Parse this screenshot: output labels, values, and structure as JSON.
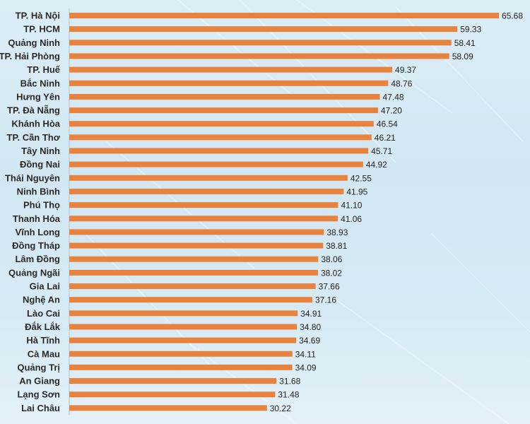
{
  "chart_data": {
    "type": "bar",
    "orientation": "horizontal",
    "categories": [
      "TP. Hà Nội",
      "TP. HCM",
      "Quảng Ninh",
      "TP. Hải Phòng",
      "TP. Huế",
      "Bắc Ninh",
      "Hưng Yên",
      "TP. Đà Nẵng",
      "Khánh Hòa",
      "TP. Cần Thơ",
      "Tây Ninh",
      "Đồng Nai",
      "Thái Nguyên",
      "Ninh Bình",
      "Phú Thọ",
      "Thanh Hóa",
      "Vĩnh Long",
      "Đồng Tháp",
      "Lâm Đồng",
      "Quảng Ngãi",
      "Gia Lai",
      "Nghệ An",
      "Lào Cai",
      "Đắk Lắk",
      "Hà Tĩnh",
      "Cà Mau",
      "Quảng Trị",
      "An Giang",
      "Lạng Sơn",
      "Lai Châu"
    ],
    "values": [
      65.68,
      59.33,
      58.41,
      58.09,
      49.37,
      48.76,
      47.48,
      47.2,
      46.54,
      46.21,
      45.71,
      44.92,
      42.55,
      41.95,
      41.1,
      41.06,
      38.93,
      38.81,
      38.06,
      38.02,
      37.66,
      37.16,
      34.91,
      34.8,
      34.69,
      34.11,
      34.09,
      31.68,
      31.48,
      30.22
    ],
    "value_labels": [
      "65.68",
      "59.33",
      "58.41",
      "58.09",
      "49.37",
      "48.76",
      "47.48",
      "47.20",
      "46.54",
      "46.21",
      "45.71",
      "44.92",
      "42.55",
      "41.95",
      "41.10",
      "41.06",
      "38.93",
      "38.81",
      "38.06",
      "38.02",
      "37.66",
      "37.16",
      "34.91",
      "34.80",
      "34.69",
      "34.11",
      "34.09",
      "31.68",
      "31.48",
      "30.22"
    ],
    "title": "",
    "xlabel": "",
    "ylabel": "",
    "xlim": [
      0,
      65.68
    ],
    "grid": false,
    "legend": "none",
    "colors": {
      "bar": "#e8823f",
      "axis": "#b9c4cc",
      "label_text": "#2a2a2a",
      "value_text": "#222222"
    }
  }
}
